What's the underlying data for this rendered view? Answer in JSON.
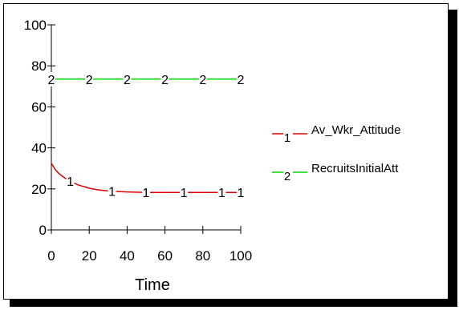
{
  "chart_data": {
    "type": "line",
    "xlabel": "Time",
    "ylabel": "",
    "xlim": [
      0,
      100
    ],
    "ylim": [
      0,
      100
    ],
    "x_ticks": [
      0,
      20,
      40,
      60,
      80,
      100
    ],
    "y_ticks": [
      0,
      20,
      40,
      60,
      80,
      100
    ],
    "grid": false,
    "legend_position": "right",
    "series": [
      {
        "id": "1",
        "name": "Av_Wkr_Attitude",
        "color": "#e00000",
        "x": [
          0,
          2,
          4,
          6,
          8,
          10,
          12,
          14,
          16,
          18,
          20,
          25,
          30,
          35,
          40,
          50,
          60,
          70,
          80,
          90,
          100
        ],
        "y": [
          32.5,
          29.5,
          27.5,
          26,
          24.8,
          23.8,
          22.8,
          22,
          21.4,
          20.9,
          20.3,
          19.5,
          19,
          18.7,
          18.5,
          18.3,
          18.3,
          18.3,
          18.3,
          18.3,
          18.3
        ],
        "marker_x": [
          10,
          32,
          50,
          70,
          90,
          100
        ]
      },
      {
        "id": "2",
        "name": "RecruitsInitialAtt",
        "color": "#00d800",
        "x": [
          0,
          100
        ],
        "y": [
          73.5,
          73.5
        ],
        "marker_x": [
          0,
          20,
          40,
          60,
          80,
          100
        ]
      }
    ]
  }
}
